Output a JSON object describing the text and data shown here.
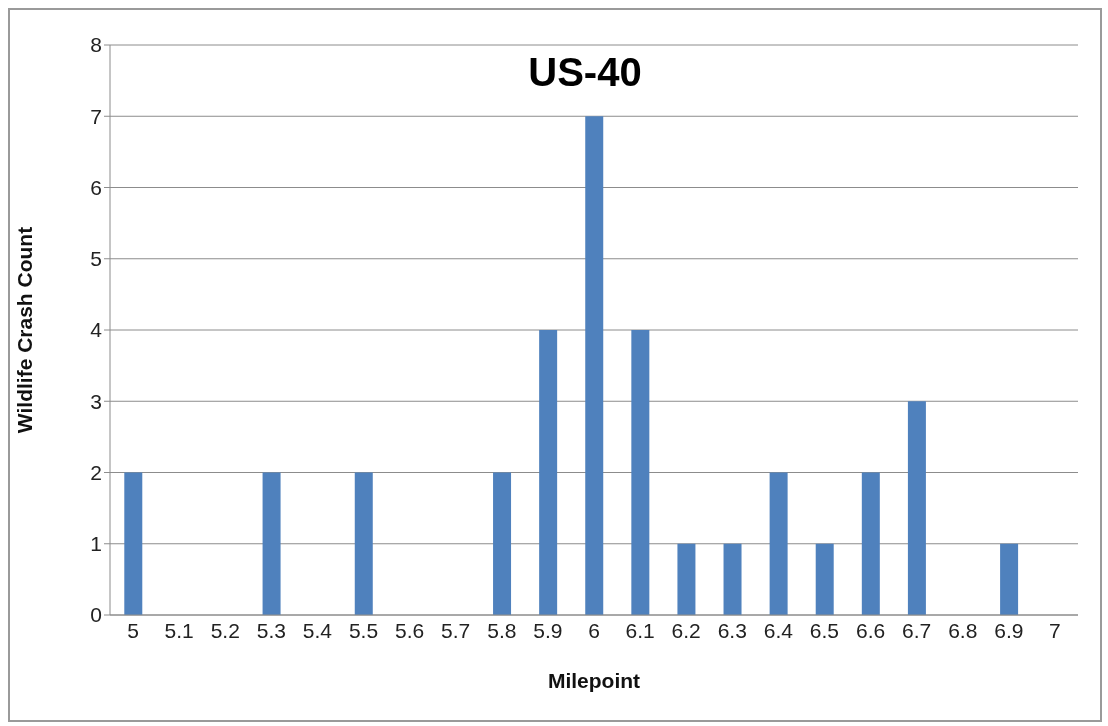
{
  "chart_data": {
    "type": "bar",
    "title": "US-40",
    "xlabel": "Milepoint",
    "ylabel": "Wildlife Crash Count",
    "categories": [
      "5",
      "5.1",
      "5.2",
      "5.3",
      "5.4",
      "5.5",
      "5.6",
      "5.7",
      "5.8",
      "5.9",
      "6",
      "6.1",
      "6.2",
      "6.3",
      "6.4",
      "6.5",
      "6.6",
      "6.7",
      "6.8",
      "6.9",
      "7"
    ],
    "values": [
      2,
      0,
      0,
      2,
      0,
      2,
      0,
      0,
      2,
      4,
      7,
      4,
      1,
      1,
      2,
      1,
      2,
      3,
      0,
      1,
      0
    ],
    "color": "#4f81bd",
    "ylim": [
      0,
      8
    ],
    "yticks": [
      0,
      1,
      2,
      3,
      4,
      5,
      6,
      7,
      8
    ],
    "grid": "y"
  }
}
